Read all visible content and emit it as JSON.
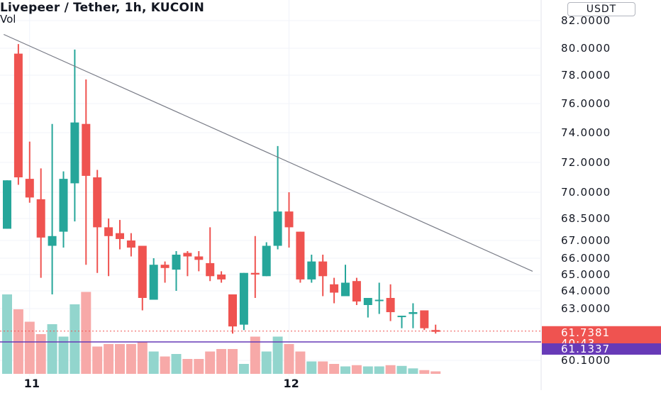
{
  "header": {
    "title": "Livepeer / Tether, 1h, KUCOIN",
    "volume_label": "Vol",
    "currency_button": "USDT"
  },
  "colors": {
    "up": "#26a69a",
    "down": "#ef5350",
    "vol_up": "#92d5cd",
    "vol_down": "#f7a9a8",
    "trendline": "#787b86",
    "level_line": "#673ab7",
    "grid": "#f0f3fa"
  },
  "chart_data": {
    "type": "candlestick",
    "title": "Livepeer / Tether, 1h, KUCOIN",
    "y_axis_ticks": [
      {
        "value": 82,
        "label": "82.0000"
      },
      {
        "value": 80,
        "label": "80.0000"
      },
      {
        "value": 78,
        "label": "78.0000"
      },
      {
        "value": 76,
        "label": "76.0000"
      },
      {
        "value": 74,
        "label": "74.0000"
      },
      {
        "value": 72,
        "label": "72.0000"
      },
      {
        "value": 70,
        "label": "70.0000"
      },
      {
        "value": 68.5,
        "label": "68.5000"
      },
      {
        "value": 67,
        "label": "67.0000"
      },
      {
        "value": 66,
        "label": "66.0000"
      },
      {
        "value": 65,
        "label": "65.0000"
      },
      {
        "value": 64,
        "label": "64.0000"
      },
      {
        "value": 63,
        "label": "63.0000"
      },
      {
        "value": 60.1,
        "label": "60.1000"
      }
    ],
    "x_axis_labels": [
      {
        "index": 2,
        "label": "11"
      },
      {
        "index": 25,
        "label": "12"
      }
    ],
    "candles": [
      {
        "o": 67.8,
        "h": 70.8,
        "l": 67.8,
        "c": 70.8
      },
      {
        "o": 79.6,
        "h": 80.3,
        "l": 70.5,
        "c": 71.0
      },
      {
        "o": 70.9,
        "h": 73.4,
        "l": 69.4,
        "c": 69.7
      },
      {
        "o": 69.6,
        "h": 71.6,
        "l": 64.8,
        "c": 67.2
      },
      {
        "o": 66.7,
        "h": 74.6,
        "l": 63.8,
        "c": 67.3
      },
      {
        "o": 67.6,
        "h": 71.4,
        "l": 66.6,
        "c": 70.9
      },
      {
        "o": 70.6,
        "h": 79.9,
        "l": 68.3,
        "c": 74.7
      },
      {
        "o": 74.6,
        "h": 77.7,
        "l": 65.6,
        "c": 71.1
      },
      {
        "o": 71.0,
        "h": 71.5,
        "l": 65.1,
        "c": 67.9
      },
      {
        "o": 67.9,
        "h": 68.5,
        "l": 64.9,
        "c": 67.3
      },
      {
        "o": 67.5,
        "h": 68.4,
        "l": 66.5,
        "c": 67.1
      },
      {
        "o": 67.0,
        "h": 67.5,
        "l": 66.1,
        "c": 66.6
      },
      {
        "o": 66.7,
        "h": 66.7,
        "l": 62.9,
        "c": 63.6
      },
      {
        "o": 63.5,
        "h": 66.0,
        "l": 63.5,
        "c": 65.6
      },
      {
        "o": 65.6,
        "h": 65.8,
        "l": 64.5,
        "c": 65.4
      },
      {
        "o": 65.3,
        "h": 66.4,
        "l": 64.0,
        "c": 66.2
      },
      {
        "o": 66.3,
        "h": 66.4,
        "l": 64.9,
        "c": 66.1
      },
      {
        "o": 66.1,
        "h": 66.4,
        "l": 65.2,
        "c": 65.9
      },
      {
        "o": 65.7,
        "h": 67.9,
        "l": 64.6,
        "c": 64.9
      },
      {
        "o": 65.0,
        "h": 65.2,
        "l": 64.5,
        "c": 64.7
      },
      {
        "o": 63.8,
        "h": 63.8,
        "l": 61.6,
        "c": 62.0
      },
      {
        "o": 62.1,
        "h": 65.1,
        "l": 61.8,
        "c": 65.1
      },
      {
        "o": 65.1,
        "h": 67.3,
        "l": 63.6,
        "c": 65.0
      },
      {
        "o": 64.9,
        "h": 66.9,
        "l": 64.9,
        "c": 66.7
      },
      {
        "o": 66.7,
        "h": 73.1,
        "l": 66.5,
        "c": 68.9
      },
      {
        "o": 68.9,
        "h": 70.0,
        "l": 66.6,
        "c": 67.9
      },
      {
        "o": 67.6,
        "h": 67.6,
        "l": 64.5,
        "c": 64.7
      },
      {
        "o": 64.7,
        "h": 66.2,
        "l": 64.5,
        "c": 65.8
      },
      {
        "o": 65.8,
        "h": 66.2,
        "l": 63.7,
        "c": 64.9
      },
      {
        "o": 64.4,
        "h": 64.8,
        "l": 63.3,
        "c": 63.9
      },
      {
        "o": 63.7,
        "h": 65.6,
        "l": 63.7,
        "c": 64.5
      },
      {
        "o": 64.6,
        "h": 64.8,
        "l": 63.2,
        "c": 63.4
      },
      {
        "o": 63.2,
        "h": 63.6,
        "l": 62.5,
        "c": 63.6
      },
      {
        "o": 63.5,
        "h": 64.5,
        "l": 62.7,
        "c": 63.5
      },
      {
        "o": 63.6,
        "h": 64.4,
        "l": 62.3,
        "c": 62.8
      },
      {
        "o": 62.6,
        "h": 62.6,
        "l": 61.9,
        "c": 62.6
      },
      {
        "o": 62.7,
        "h": 63.3,
        "l": 61.9,
        "c": 62.8
      },
      {
        "o": 62.9,
        "h": 62.9,
        "l": 61.8,
        "c": 61.9
      },
      {
        "o": 61.8,
        "h": 62.1,
        "l": 61.6,
        "c": 61.7
      }
    ],
    "volume": [
      3.2,
      2.6,
      2.1,
      1.6,
      2.0,
      1.5,
      2.8,
      3.3,
      1.1,
      1.2,
      1.2,
      1.2,
      1.3,
      0.9,
      0.7,
      0.8,
      0.6,
      0.6,
      0.9,
      1.0,
      1.0,
      0.4,
      1.5,
      0.9,
      1.5,
      1.2,
      0.9,
      0.5,
      0.5,
      0.4,
      0.3,
      0.35,
      0.3,
      0.3,
      0.35,
      0.32,
      0.22,
      0.15,
      0.1
    ],
    "trendline": [
      {
        "index": -0.3,
        "value": 81.0
      },
      {
        "index": 46.6,
        "value": 65.2
      }
    ],
    "current_price": {
      "value": 61.7381,
      "label": "61.7381",
      "countdown": "40:43"
    },
    "level_line": {
      "value": 61.1337,
      "label": "61.1337"
    }
  }
}
